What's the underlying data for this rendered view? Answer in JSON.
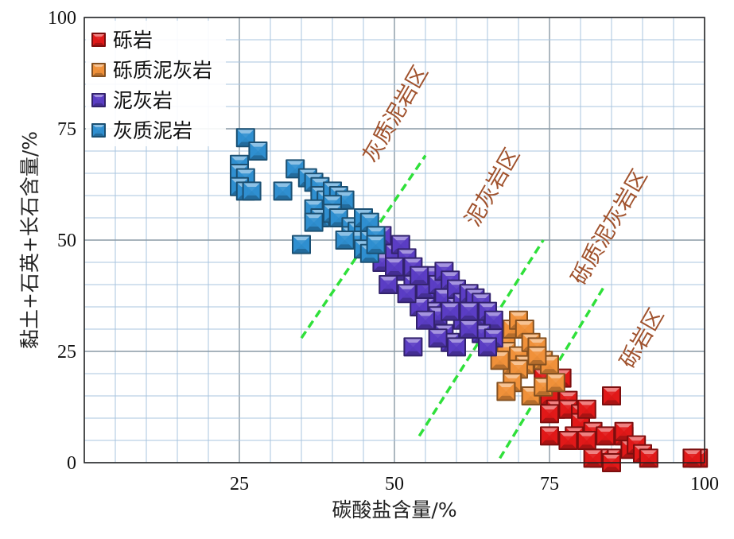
{
  "chart_data": {
    "type": "scatter",
    "xlabel": "碳酸盐含量/%",
    "ylabel": "黏土+石英+长石含量/%",
    "xlim": [
      0,
      100
    ],
    "ylim": [
      0,
      100
    ],
    "x_ticks": [
      "25",
      "50",
      "75",
      "100"
    ],
    "y_ticks": [
      "0",
      "25",
      "50",
      "75",
      "100"
    ],
    "grid": true,
    "legend_position": "top-left",
    "series": [
      {
        "name": "砾岩",
        "color": "#e11919",
        "points": [
          [
            74,
            19
          ],
          [
            77,
            19
          ],
          [
            75,
            15
          ],
          [
            78,
            14
          ],
          [
            76,
            12
          ],
          [
            78,
            12
          ],
          [
            75,
            11
          ],
          [
            80,
            11
          ],
          [
            80,
            9
          ],
          [
            81,
            12
          ],
          [
            82,
            7
          ],
          [
            79,
            6
          ],
          [
            75,
            6
          ],
          [
            78,
            5
          ],
          [
            81,
            5
          ],
          [
            85,
            15
          ],
          [
            84,
            6
          ],
          [
            85,
            1
          ],
          [
            87,
            6
          ],
          [
            87,
            7
          ],
          [
            88,
            3
          ],
          [
            89,
            4
          ],
          [
            90,
            2
          ],
          [
            91,
            1
          ],
          [
            83,
            1
          ],
          [
            99,
            1
          ],
          [
            98,
            1
          ],
          [
            85,
            0
          ],
          [
            82,
            1
          ]
        ]
      },
      {
        "name": "砾质泥灰岩",
        "color": "#f0913a",
        "points": [
          [
            67,
            28
          ],
          [
            68,
            27
          ],
          [
            69,
            30
          ],
          [
            70,
            32
          ],
          [
            71,
            30
          ],
          [
            68,
            25
          ],
          [
            69,
            22
          ],
          [
            70,
            24
          ],
          [
            72,
            27
          ],
          [
            73,
            26
          ],
          [
            71,
            22
          ],
          [
            70,
            21
          ],
          [
            67,
            23
          ],
          [
            74,
            23
          ],
          [
            75,
            22
          ],
          [
            73,
            24
          ],
          [
            69,
            18
          ],
          [
            68,
            16
          ],
          [
            72,
            15
          ],
          [
            74,
            17
          ],
          [
            76,
            18
          ]
        ]
      },
      {
        "name": "泥灰岩",
        "color": "#5b3dc4",
        "points": [
          [
            48,
            51
          ],
          [
            48,
            45
          ],
          [
            50,
            47
          ],
          [
            51,
            49
          ],
          [
            52,
            46
          ],
          [
            51,
            43
          ],
          [
            53,
            44
          ],
          [
            53,
            40
          ],
          [
            55,
            39
          ],
          [
            56,
            42
          ],
          [
            57,
            40
          ],
          [
            58,
            43
          ],
          [
            58,
            37
          ],
          [
            59,
            41
          ],
          [
            60,
            39
          ],
          [
            60,
            35
          ],
          [
            61,
            36
          ],
          [
            62,
            38
          ],
          [
            63,
            37
          ],
          [
            64,
            36
          ],
          [
            61,
            32
          ],
          [
            63,
            33
          ],
          [
            65,
            34
          ],
          [
            66,
            32
          ],
          [
            64,
            29
          ],
          [
            66,
            28
          ],
          [
            65,
            26
          ],
          [
            62,
            30
          ],
          [
            55,
            35
          ],
          [
            56,
            34
          ],
          [
            57,
            33
          ],
          [
            58,
            29
          ],
          [
            59,
            27
          ],
          [
            60,
            26
          ],
          [
            57,
            28
          ],
          [
            53,
            26
          ],
          [
            54,
            35
          ],
          [
            55,
            32
          ],
          [
            62,
            34
          ],
          [
            59,
            34
          ],
          [
            52,
            38
          ],
          [
            49,
            40
          ],
          [
            50,
            44
          ],
          [
            54,
            42
          ]
        ]
      },
      {
        "name": "灰质泥岩",
        "color": "#2f8fd0",
        "points": [
          [
            26,
            73
          ],
          [
            28,
            70
          ],
          [
            25,
            67
          ],
          [
            25,
            65
          ],
          [
            26,
            64
          ],
          [
            25,
            62
          ],
          [
            26,
            61
          ],
          [
            27,
            61
          ],
          [
            32,
            61
          ],
          [
            34,
            66
          ],
          [
            36,
            64
          ],
          [
            37,
            63
          ],
          [
            38,
            62
          ],
          [
            38,
            60
          ],
          [
            39,
            59
          ],
          [
            40,
            61
          ],
          [
            41,
            60
          ],
          [
            42,
            59
          ],
          [
            40,
            58
          ],
          [
            37,
            57
          ],
          [
            38,
            55
          ],
          [
            37,
            54
          ],
          [
            40,
            56
          ],
          [
            41,
            55
          ],
          [
            43,
            53
          ],
          [
            43,
            51
          ],
          [
            44,
            52
          ],
          [
            45,
            53
          ],
          [
            45,
            55
          ],
          [
            46,
            54
          ],
          [
            44,
            50
          ],
          [
            46,
            50
          ],
          [
            45,
            48
          ],
          [
            46,
            47
          ],
          [
            47,
            51
          ],
          [
            42,
            50
          ],
          [
            35,
            49
          ],
          [
            47,
            49
          ]
        ]
      }
    ],
    "zone_labels": [
      "灰质泥岩区",
      "泥灰岩区",
      "砾质泥灰岩区",
      "砾岩区"
    ],
    "zone_color": "#a0522d",
    "divider_color": "#2fe03a",
    "dividers": [
      [
        [
          35,
          28
        ],
        [
          55,
          69
        ]
      ],
      [
        [
          54,
          6
        ],
        [
          74,
          50
        ]
      ],
      [
        [
          67,
          1
        ],
        [
          84,
          40
        ]
      ]
    ]
  }
}
